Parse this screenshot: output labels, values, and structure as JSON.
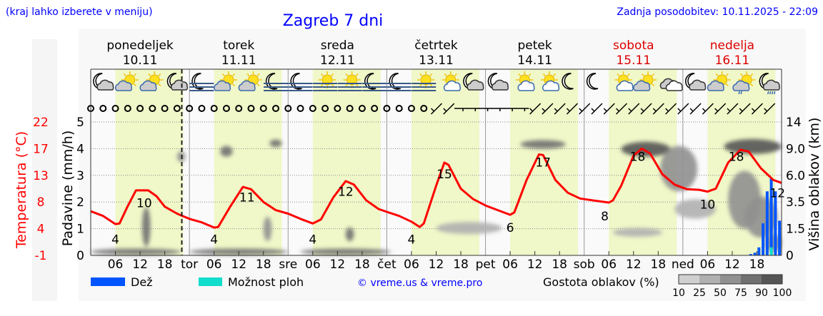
{
  "header": {
    "hint": "(kraj lahko izberete v meniju)",
    "title": "Zagreb 7 dni",
    "updated": "Zadnja posodobitev: 10.11.2025 - 22:09"
  },
  "colors": {
    "temperature": "#ff0000",
    "rain": "#0055ff",
    "showers": "#11ddcc",
    "daylight": "#f0f7c8",
    "title": "#0000ff",
    "weekend": "#dd0000"
  },
  "days": [
    {
      "name": "ponedeljek",
      "date": "10.11",
      "abbr": "",
      "weekend": false
    },
    {
      "name": "torek",
      "date": "11.11",
      "abbr": "tor",
      "weekend": false
    },
    {
      "name": "sreda",
      "date": "12.11",
      "abbr": "sre",
      "weekend": false
    },
    {
      "name": "četrtek",
      "date": "13.11",
      "abbr": "čet",
      "weekend": false
    },
    {
      "name": "petek",
      "date": "14.11",
      "abbr": "pet",
      "weekend": false
    },
    {
      "name": "sobota",
      "date": "15.11",
      "abbr": "sob",
      "weekend": true
    },
    {
      "name": "nedelja",
      "date": "16.11",
      "abbr": "ned",
      "weekend": true
    }
  ],
  "icons": [
    "night-cloud",
    "sun-cloud",
    "sun-cloud",
    "night-cloud",
    "night-fog",
    "sun-cloud",
    "sun-cloud",
    "night-fog",
    "night-fog",
    "sun-fog",
    "sun-fog",
    "night-fog",
    "night-fog",
    "sun-fog",
    "sun-small-cloud",
    "night-cloud",
    "night-cloud",
    "sun-small-cloud",
    "sun-small-cloud",
    "moon",
    "moon",
    "sun-small-cloud",
    "sun-cloud",
    "cloudy",
    "night-cloud",
    "sun-cloud",
    "sun-cloud-rain",
    "night-rain"
  ],
  "wind": [
    "calm",
    "calm",
    "calm",
    "calm",
    "calm",
    "calm",
    "calm",
    "calm",
    "calm",
    "calm",
    "calm",
    "calm",
    "calm",
    "calm",
    "calm",
    "calm",
    "calm",
    "calm",
    "calm",
    "calm",
    "calm",
    "calm",
    "calm",
    "calm",
    "calm",
    "calm",
    "calm",
    "calm",
    "NE",
    "NE",
    "E",
    "E",
    "E",
    "E",
    "E",
    "E",
    "NE",
    "NE",
    "NE",
    "NE",
    "NE",
    "NE",
    "NE",
    "NE",
    "NE",
    "NE",
    "NE",
    "NE",
    "NE",
    "NE",
    "NE",
    "NE",
    "NE",
    "NE",
    "NE",
    "NE"
  ],
  "chart_data": {
    "type": "line",
    "x_unit": "hour since 10.11 00:00",
    "x_ticks": [
      "06",
      "12",
      "18"
    ],
    "now_marker": "22:09",
    "temperature": {
      "ylabel": "Temperatura (°C)",
      "ticks": [
        "22",
        "17",
        "13",
        "8",
        "4",
        "-1"
      ],
      "points": [
        [
          0,
          6.6
        ],
        [
          3,
          5.8
        ],
        [
          6,
          4.4
        ],
        [
          7,
          4.5
        ],
        [
          9,
          7.5
        ],
        [
          11,
          10.2
        ],
        [
          14,
          10.2
        ],
        [
          16,
          9.2
        ],
        [
          18,
          7.4
        ],
        [
          21,
          6.2
        ],
        [
          24,
          5.3
        ],
        [
          27,
          4.7
        ],
        [
          30,
          3.8
        ],
        [
          31,
          3.9
        ],
        [
          34,
          7.5
        ],
        [
          37,
          10.8
        ],
        [
          39,
          10.4
        ],
        [
          42,
          8.2
        ],
        [
          45,
          6.8
        ],
        [
          48,
          6.2
        ],
        [
          51,
          5.3
        ],
        [
          54,
          4.5
        ],
        [
          56,
          5.2
        ],
        [
          59,
          9
        ],
        [
          62,
          11.8
        ],
        [
          64,
          11.2
        ],
        [
          67,
          8.5
        ],
        [
          70,
          7
        ],
        [
          72,
          6.5
        ],
        [
          75,
          5.8
        ],
        [
          78,
          4.8
        ],
        [
          80,
          3.9
        ],
        [
          81,
          4.5
        ],
        [
          84,
          11
        ],
        [
          86,
          15
        ],
        [
          87,
          14.6
        ],
        [
          90,
          10.5
        ],
        [
          93,
          8.7
        ],
        [
          96,
          7.6
        ],
        [
          99,
          6.8
        ],
        [
          102,
          6
        ],
        [
          103,
          6.4
        ],
        [
          106,
          12
        ],
        [
          109,
          16.4
        ],
        [
          110,
          16.3
        ],
        [
          113,
          12
        ],
        [
          116,
          9.8
        ],
        [
          119,
          8.8
        ],
        [
          122,
          8.5
        ],
        [
          126,
          8.1
        ],
        [
          127,
          8.5
        ],
        [
          129,
          11
        ],
        [
          132,
          16.2
        ],
        [
          134,
          17.4
        ],
        [
          136,
          16.6
        ],
        [
          139,
          13
        ],
        [
          142,
          11.2
        ],
        [
          145,
          10.4
        ],
        [
          148,
          10.3
        ],
        [
          150,
          10.0
        ],
        [
          152,
          10.5
        ],
        [
          155,
          15
        ],
        [
          158,
          17.2
        ],
        [
          160,
          16.9
        ],
        [
          163,
          14
        ],
        [
          166,
          12
        ],
        [
          168,
          11.5
        ]
      ],
      "labels": [
        {
          "hour": 6,
          "value": "4",
          "kind": "min"
        },
        {
          "hour": 13,
          "value": "10",
          "kind": "max"
        },
        {
          "hour": 30,
          "value": "4",
          "kind": "min"
        },
        {
          "hour": 38,
          "value": "11",
          "kind": "max"
        },
        {
          "hour": 54,
          "value": "4",
          "kind": "min"
        },
        {
          "hour": 62,
          "value": "12",
          "kind": "max"
        },
        {
          "hour": 78,
          "value": "4",
          "kind": "min"
        },
        {
          "hour": 86,
          "value": "15",
          "kind": "max"
        },
        {
          "hour": 102,
          "value": "6",
          "kind": "min"
        },
        {
          "hour": 110,
          "value": "17",
          "kind": "max"
        },
        {
          "hour": 125,
          "value": "8",
          "kind": "min"
        },
        {
          "hour": 133,
          "value": "18",
          "kind": "max"
        },
        {
          "hour": 150,
          "value": "10",
          "kind": "min"
        },
        {
          "hour": 157,
          "value": "18",
          "kind": "max"
        },
        {
          "hour": 167,
          "value": "12",
          "kind": "min"
        }
      ]
    },
    "precipitation": {
      "ylabel": "Padavine (mm/h)",
      "ylim": [
        0,
        5
      ],
      "ticks": [
        "0",
        "1",
        "2",
        "3",
        "4",
        "5"
      ],
      "rain": [
        [
          160.5,
          0.05
        ],
        [
          161.5,
          0.1
        ],
        [
          162.5,
          0.3
        ],
        [
          163.5,
          1.2
        ],
        [
          164.5,
          2.4
        ],
        [
          165.5,
          2.9
        ],
        [
          166.5,
          2.4
        ],
        [
          167.5,
          1.3
        ]
      ],
      "showers": [
        [
          165.5,
          0.3
        ]
      ]
    },
    "cloud_height": {
      "ylabel": "Višina oblakov (km)",
      "ticks": [
        "0",
        "1.5",
        "3.5",
        "6.0",
        "9.0",
        "14"
      ],
      "blobs": [
        {
          "hour": 11,
          "width": 22,
          "km": 0.2,
          "depth": 0.35,
          "density": 75
        },
        {
          "hour": 13.5,
          "width": 2,
          "km": 1.8,
          "depth": 2.6,
          "density": 75
        },
        {
          "hour": 22,
          "width": 2,
          "km": 8.1,
          "depth": 1.2,
          "density": 50
        },
        {
          "hour": 33,
          "width": 3,
          "km": 8.8,
          "depth": 1.4,
          "density": 75
        },
        {
          "hour": 43,
          "width": 2,
          "km": 1.6,
          "depth": 1.6,
          "density": 50
        },
        {
          "hour": 45,
          "width": 3,
          "km": 10,
          "depth": 1.4,
          "density": 75
        },
        {
          "hour": 36,
          "width": 24,
          "km": 0.2,
          "depth": 0.35,
          "density": 75
        },
        {
          "hour": 62,
          "width": 22,
          "km": 0.2,
          "depth": 0.35,
          "density": 75
        },
        {
          "hour": 63,
          "width": 2,
          "km": 1.2,
          "depth": 0.8,
          "density": 75
        },
        {
          "hour": 92,
          "width": 16,
          "km": 1.6,
          "depth": 0.8,
          "density": 25
        },
        {
          "hour": 110,
          "width": 11,
          "km": 9.8,
          "depth": 1.6,
          "density": 75
        },
        {
          "hour": 135,
          "width": 12,
          "km": 9.2,
          "depth": 2.2,
          "density": 90
        },
        {
          "hour": 143,
          "width": 9,
          "km": 7,
          "depth": 5,
          "density": 50
        },
        {
          "hour": 147,
          "width": 10,
          "km": 3,
          "depth": 1.5,
          "density": 25
        },
        {
          "hour": 133,
          "width": 12,
          "km": 1.3,
          "depth": 0.5,
          "density": 25
        },
        {
          "hour": 161,
          "width": 14,
          "km": 9.6,
          "depth": 2.4,
          "density": 90
        },
        {
          "hour": 159,
          "width": 8,
          "km": 4,
          "depth": 5,
          "density": 50
        },
        {
          "hour": 163,
          "width": 8,
          "km": 2.5,
          "depth": 3,
          "density": 50
        },
        {
          "hour": 166,
          "width": 4,
          "km": 0.7,
          "depth": 1,
          "density": 50
        }
      ]
    }
  },
  "legend": {
    "rain": "Dež",
    "showers": "Možnost ploh",
    "copyright": "© vreme.us & vreme.pro",
    "cloud_density": "Gostota oblakov (%)",
    "density_steps": [
      "10",
      "25",
      "50",
      "75",
      "90",
      "100"
    ],
    "density_colors": [
      "#d0d0d0",
      "#b0b0b0",
      "#909090",
      "#707070",
      "#555555"
    ]
  }
}
